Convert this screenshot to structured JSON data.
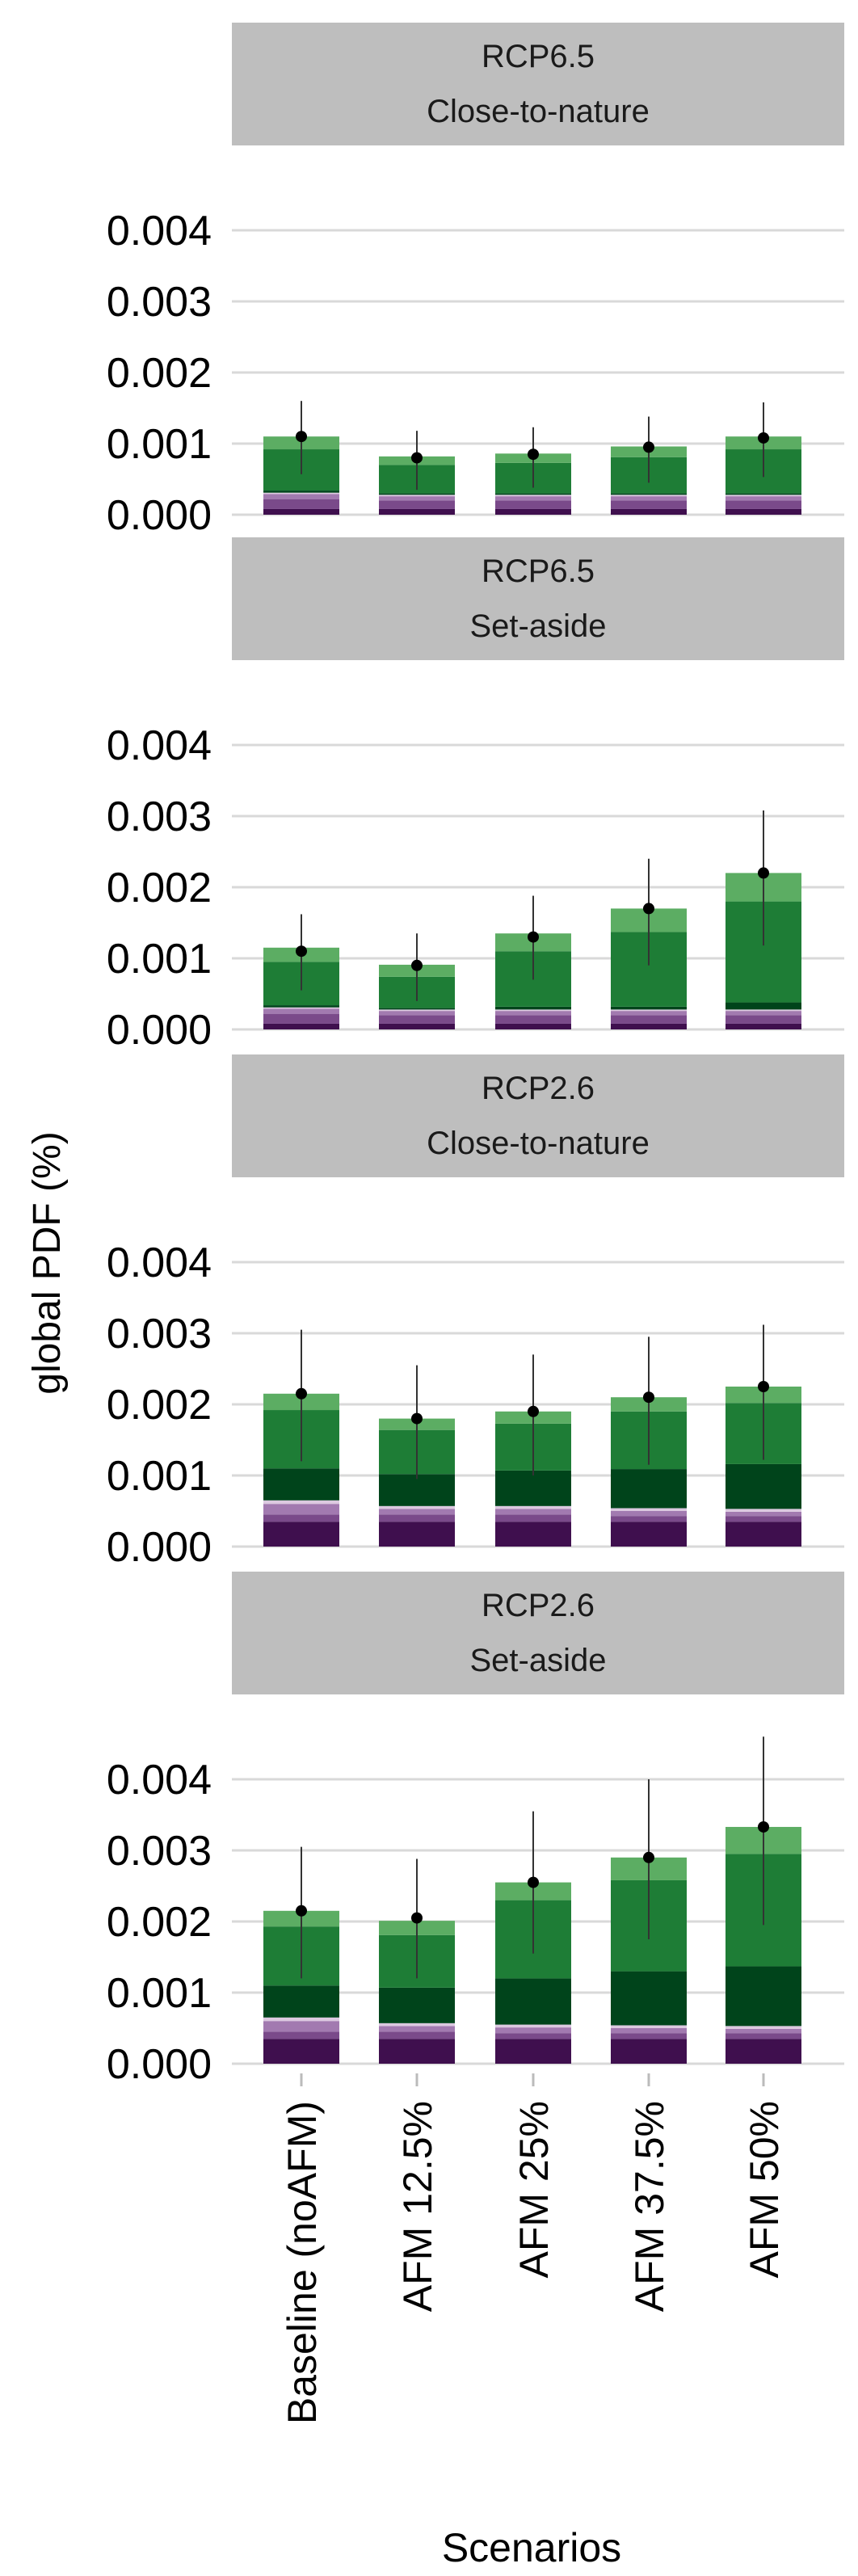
{
  "chart_data": {
    "type": "bar",
    "stacked": true,
    "xlabel": "Scenarios",
    "ylabel": "global PDF (%)",
    "categories": [
      "Baseline (noAFM)",
      "AFM 12.5%",
      "AFM 25%",
      "AFM 37.5%",
      "AFM 50%"
    ],
    "ylim": [
      0,
      0.0042
    ],
    "yticks": [
      "0.000",
      "0.001",
      "0.002",
      "0.003",
      "0.004"
    ],
    "grid": true,
    "legend": "none",
    "colors": {
      "strip_bg": "#bebebe",
      "grid": "#d9d9d9",
      "point": "#000000",
      "errorbar": "#333333"
    },
    "series_colors": [
      "#3f0f4e",
      "#7a4a8a",
      "#a27ab0",
      "#dcc9e0",
      "#00441b",
      "#1e7d36",
      "#5cad63"
    ],
    "panels": [
      {
        "title": "RCP6.5",
        "subtitle": "Close-to-nature",
        "stacks": [
          [
            8e-05,
            0.00014,
            7e-05,
            2e-05,
            3e-05,
            0.00058,
            0.00018
          ],
          [
            8e-05,
            0.00012,
            6e-05,
            2e-05,
            2e-05,
            0.0004,
            0.00012
          ],
          [
            8e-05,
            0.00012,
            6e-05,
            2e-05,
            2e-05,
            0.00043,
            0.00013
          ],
          [
            8e-05,
            0.00012,
            6e-05,
            2e-05,
            2e-05,
            0.00051,
            0.00015
          ],
          [
            8e-05,
            0.00012,
            6e-05,
            2e-05,
            2e-05,
            0.00062,
            0.00018
          ]
        ],
        "means": [
          0.0011,
          0.0008,
          0.00085,
          0.00095,
          0.00108
        ],
        "errors": [
          [
            0.00057,
            0.0016
          ],
          [
            0.00035,
            0.00118
          ],
          [
            0.00038,
            0.00123
          ],
          [
            0.00045,
            0.00138
          ],
          [
            0.00053,
            0.00158
          ]
        ]
      },
      {
        "title": "RCP6.5",
        "subtitle": "Set-aside",
        "stacks": [
          [
            8e-05,
            0.00014,
            7e-05,
            2e-05,
            3e-05,
            0.00061,
            0.0002
          ],
          [
            8e-05,
            0.00012,
            6e-05,
            2e-05,
            2e-05,
            0.00044,
            0.00017
          ],
          [
            8e-05,
            0.00012,
            6e-05,
            2e-05,
            4e-05,
            0.00078,
            0.00025
          ],
          [
            8e-05,
            0.00012,
            6e-05,
            2e-05,
            4e-05,
            0.00105,
            0.00033
          ],
          [
            8e-05,
            0.00012,
            6e-05,
            2e-05,
            0.0001,
            0.00142,
            0.0004
          ]
        ],
        "means": [
          0.0011,
          0.0009,
          0.0013,
          0.0017,
          0.0022
        ],
        "errors": [
          [
            0.00055,
            0.00162
          ],
          [
            0.0004,
            0.00135
          ],
          [
            0.0007,
            0.00188
          ],
          [
            0.0009,
            0.0024
          ],
          [
            0.00118,
            0.00308
          ]
        ]
      },
      {
        "title": "RCP2.6",
        "subtitle": "Close-to-nature",
        "stacks": [
          [
            0.00035,
            0.0001,
            0.00015,
            5e-05,
            0.00045,
            0.00082,
            0.00023
          ],
          [
            0.00035,
            0.0001,
            8e-05,
            4e-05,
            0.00045,
            0.00062,
            0.00016
          ],
          [
            0.00035,
            0.0001,
            8e-05,
            4e-05,
            0.0005,
            0.00066,
            0.00017
          ],
          [
            0.00035,
            8e-05,
            7e-05,
            4e-05,
            0.00055,
            0.00081,
            0.0002
          ],
          [
            0.00035,
            8e-05,
            6e-05,
            4e-05,
            0.00063,
            0.00086,
            0.00023
          ]
        ],
        "means": [
          0.00215,
          0.0018,
          0.0019,
          0.0021,
          0.00225
        ],
        "errors": [
          [
            0.0012,
            0.00305
          ],
          [
            0.00095,
            0.00255
          ],
          [
            0.001,
            0.0027
          ],
          [
            0.00115,
            0.00295
          ],
          [
            0.00122,
            0.00312
          ]
        ]
      },
      {
        "title": "RCP2.6",
        "subtitle": "Set-aside",
        "stacks": [
          [
            0.00035,
            0.0001,
            0.00015,
            5e-05,
            0.00045,
            0.00083,
            0.00022
          ],
          [
            0.00035,
            0.0001,
            8e-05,
            4e-05,
            0.0005,
            0.00074,
            0.0002
          ],
          [
            0.00035,
            8e-05,
            8e-05,
            4e-05,
            0.00065,
            0.0011,
            0.00025
          ],
          [
            0.00035,
            8e-05,
            7e-05,
            4e-05,
            0.00076,
            0.00128,
            0.00032
          ],
          [
            0.00035,
            8e-05,
            6e-05,
            4e-05,
            0.00084,
            0.00158,
            0.00038
          ]
        ],
        "means": [
          0.00215,
          0.00205,
          0.00255,
          0.0029,
          0.00333
        ],
        "errors": [
          [
            0.0012,
            0.00305
          ],
          [
            0.0012,
            0.00288
          ],
          [
            0.00155,
            0.00355
          ],
          [
            0.00175,
            0.004
          ],
          [
            0.00195,
            0.0046
          ]
        ]
      }
    ]
  }
}
